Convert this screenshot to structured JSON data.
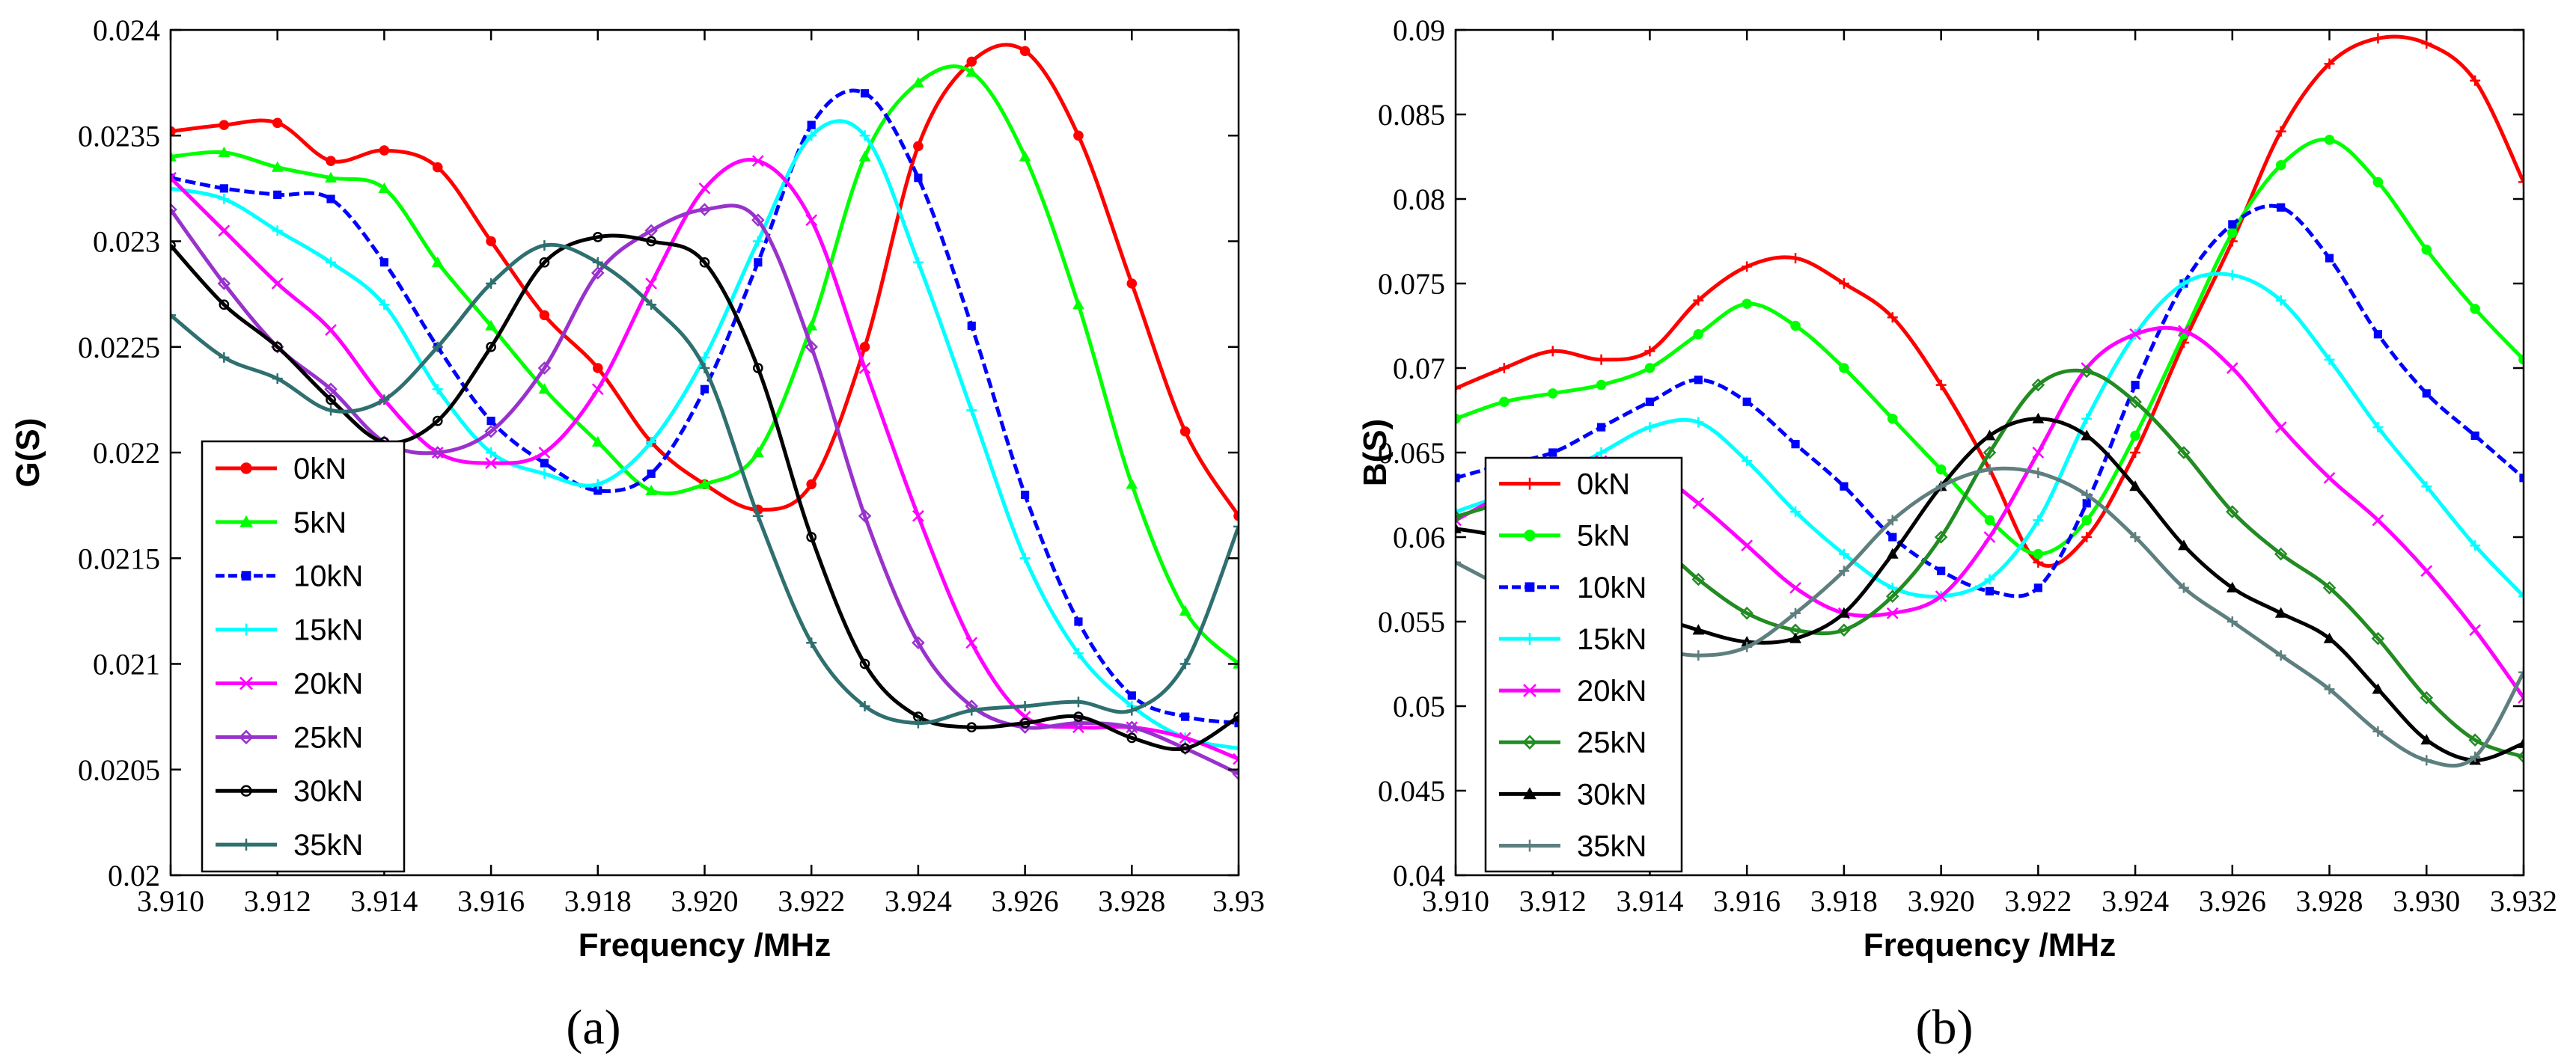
{
  "chart_data": [
    {
      "type": "line",
      "panel_label": "(a)",
      "ylabel": "G(S)",
      "xlabel": "Frequency /MHz",
      "xlim": [
        3.91,
        3.93
      ],
      "ylim": [
        0.02,
        0.024
      ],
      "xticks": [
        "3.910",
        "3.912",
        "3.914",
        "3.916",
        "3.918",
        "3.920",
        "3.922",
        "3.924",
        "3.926",
        "3.928",
        "3.93"
      ],
      "yticks": [
        "0.02",
        "0.0205",
        "0.021",
        "0.0215",
        "0.022",
        "0.0225",
        "0.023",
        "0.0235",
        "0.024"
      ],
      "legend_position": "bottom-left",
      "series": [
        {
          "name": "0kN",
          "color": "#ff0000",
          "marker": "dot",
          "x": [
            3.91,
            3.911,
            3.912,
            3.913,
            3.914,
            3.915,
            3.916,
            3.917,
            3.918,
            3.919,
            3.92,
            3.921,
            3.922,
            3.923,
            3.924,
            3.925,
            3.926,
            3.927,
            3.928,
            3.929,
            3.93
          ],
          "y": [
            0.02352,
            0.02355,
            0.02356,
            0.02338,
            0.02343,
            0.02335,
            0.023,
            0.02265,
            0.0224,
            0.02205,
            0.02185,
            0.02173,
            0.02185,
            0.0225,
            0.02345,
            0.02385,
            0.0239,
            0.0235,
            0.0228,
            0.0221,
            0.0217
          ]
        },
        {
          "name": "5kN",
          "color": "#00ff00",
          "marker": "triangle",
          "x": [
            3.91,
            3.911,
            3.912,
            3.913,
            3.914,
            3.915,
            3.916,
            3.917,
            3.918,
            3.919,
            3.92,
            3.921,
            3.922,
            3.923,
            3.924,
            3.925,
            3.926,
            3.927,
            3.928,
            3.929,
            3.93
          ],
          "y": [
            0.0234,
            0.02342,
            0.02335,
            0.0233,
            0.02325,
            0.0229,
            0.0226,
            0.0223,
            0.02205,
            0.02182,
            0.02185,
            0.022,
            0.0226,
            0.0234,
            0.02375,
            0.0238,
            0.0234,
            0.0227,
            0.02185,
            0.02125,
            0.021
          ]
        },
        {
          "name": "10kN",
          "color": "#0000ff",
          "marker": "square",
          "dashed": true,
          "x": [
            3.91,
            3.911,
            3.912,
            3.913,
            3.914,
            3.915,
            3.916,
            3.917,
            3.918,
            3.919,
            3.92,
            3.921,
            3.922,
            3.923,
            3.924,
            3.925,
            3.926,
            3.927,
            3.928,
            3.929,
            3.93
          ],
          "y": [
            0.0233,
            0.02325,
            0.02322,
            0.0232,
            0.0229,
            0.0225,
            0.02215,
            0.02195,
            0.02182,
            0.0219,
            0.0223,
            0.0229,
            0.02355,
            0.0237,
            0.0233,
            0.0226,
            0.0218,
            0.0212,
            0.02085,
            0.02075,
            0.02072
          ]
        },
        {
          "name": "15kN",
          "color": "#00ffff",
          "marker": "plus",
          "x": [
            3.91,
            3.911,
            3.912,
            3.913,
            3.914,
            3.915,
            3.916,
            3.917,
            3.918,
            3.919,
            3.92,
            3.921,
            3.922,
            3.923,
            3.924,
            3.925,
            3.926,
            3.927,
            3.928,
            3.929,
            3.93
          ],
          "y": [
            0.02325,
            0.0232,
            0.02305,
            0.0229,
            0.0227,
            0.0223,
            0.022,
            0.0219,
            0.02185,
            0.02205,
            0.02245,
            0.023,
            0.0235,
            0.0235,
            0.0229,
            0.0222,
            0.0215,
            0.02105,
            0.0208,
            0.02065,
            0.0206
          ]
        },
        {
          "name": "20kN",
          "color": "#ff00ff",
          "marker": "x",
          "x": [
            3.91,
            3.911,
            3.912,
            3.913,
            3.914,
            3.915,
            3.916,
            3.917,
            3.918,
            3.919,
            3.92,
            3.921,
            3.922,
            3.923,
            3.924,
            3.925,
            3.926,
            3.927,
            3.928,
            3.929,
            3.93
          ],
          "y": [
            0.0233,
            0.02305,
            0.0228,
            0.02258,
            0.02225,
            0.022,
            0.02195,
            0.022,
            0.0223,
            0.0228,
            0.02325,
            0.02338,
            0.0231,
            0.0224,
            0.0217,
            0.0211,
            0.02075,
            0.0207,
            0.0207,
            0.02065,
            0.02055
          ]
        },
        {
          "name": "25kN",
          "color": "#9932cc",
          "marker": "diamond",
          "x": [
            3.91,
            3.911,
            3.912,
            3.913,
            3.914,
            3.915,
            3.916,
            3.917,
            3.918,
            3.919,
            3.92,
            3.921,
            3.922,
            3.923,
            3.924,
            3.925,
            3.926,
            3.927,
            3.928,
            3.929,
            3.93
          ],
          "y": [
            0.02315,
            0.0228,
            0.0225,
            0.0223,
            0.02205,
            0.022,
            0.0221,
            0.0224,
            0.02285,
            0.02305,
            0.02315,
            0.0231,
            0.0225,
            0.0217,
            0.0211,
            0.0208,
            0.0207,
            0.02072,
            0.0207,
            0.0206,
            0.02048
          ]
        },
        {
          "name": "30kN",
          "color": "#000000",
          "marker": "circle",
          "x": [
            3.91,
            3.911,
            3.912,
            3.913,
            3.914,
            3.915,
            3.916,
            3.917,
            3.918,
            3.919,
            3.92,
            3.921,
            3.922,
            3.923,
            3.924,
            3.925,
            3.926,
            3.927,
            3.928,
            3.929,
            3.93
          ],
          "y": [
            0.02298,
            0.0227,
            0.0225,
            0.02225,
            0.02205,
            0.02215,
            0.0225,
            0.0229,
            0.02302,
            0.023,
            0.0229,
            0.0224,
            0.0216,
            0.021,
            0.02075,
            0.0207,
            0.02072,
            0.02075,
            0.02065,
            0.0206,
            0.02075
          ]
        },
        {
          "name": "35kN",
          "color": "#2f6f6f",
          "marker": "plus",
          "x": [
            3.91,
            3.911,
            3.912,
            3.913,
            3.914,
            3.915,
            3.916,
            3.917,
            3.918,
            3.919,
            3.92,
            3.921,
            3.922,
            3.923,
            3.924,
            3.925,
            3.926,
            3.927,
            3.928,
            3.929,
            3.93
          ],
          "y": [
            0.02265,
            0.02245,
            0.02235,
            0.0222,
            0.02225,
            0.0225,
            0.0228,
            0.02298,
            0.0229,
            0.0227,
            0.0224,
            0.0217,
            0.0211,
            0.0208,
            0.02072,
            0.02078,
            0.0208,
            0.02082,
            0.02078,
            0.021,
            0.02165
          ]
        }
      ]
    },
    {
      "type": "line",
      "panel_label": "(b)",
      "ylabel": "B(S)",
      "xlabel": "Frequency /MHz",
      "xlim": [
        3.91,
        3.932
      ],
      "ylim": [
        0.04,
        0.09
      ],
      "xticks": [
        "3.910",
        "3.912",
        "3.914",
        "3.916",
        "3.918",
        "3.920",
        "3.922",
        "3.924",
        "3.926",
        "3.928",
        "3.930",
        "3.932"
      ],
      "yticks": [
        "0.04",
        "0.045",
        "0.05",
        "0.055",
        "0.06",
        "0.065",
        "0.07",
        "0.075",
        "0.08",
        "0.085",
        "0.09"
      ],
      "legend_position": "bottom-left",
      "series": [
        {
          "name": "0kN",
          "color": "#ff0000",
          "marker": "plus",
          "x": [
            3.91,
            3.911,
            3.912,
            3.913,
            3.914,
            3.915,
            3.916,
            3.917,
            3.918,
            3.919,
            3.92,
            3.921,
            3.922,
            3.923,
            3.924,
            3.925,
            3.926,
            3.927,
            3.928,
            3.929,
            3.93,
            3.931,
            3.932
          ],
          "y": [
            0.0688,
            0.07,
            0.071,
            0.0705,
            0.071,
            0.074,
            0.076,
            0.0765,
            0.075,
            0.073,
            0.069,
            0.064,
            0.0585,
            0.06,
            0.065,
            0.0715,
            0.0775,
            0.084,
            0.088,
            0.0895,
            0.0892,
            0.087,
            0.081
          ]
        },
        {
          "name": "5kN",
          "color": "#00ff00",
          "marker": "dot",
          "x": [
            3.91,
            3.911,
            3.912,
            3.913,
            3.914,
            3.915,
            3.916,
            3.917,
            3.918,
            3.919,
            3.92,
            3.921,
            3.922,
            3.923,
            3.924,
            3.925,
            3.926,
            3.927,
            3.928,
            3.929,
            3.93,
            3.931,
            3.932
          ],
          "y": [
            0.067,
            0.068,
            0.0685,
            0.069,
            0.07,
            0.072,
            0.0738,
            0.0725,
            0.07,
            0.067,
            0.064,
            0.061,
            0.059,
            0.061,
            0.066,
            0.072,
            0.078,
            0.082,
            0.0835,
            0.081,
            0.077,
            0.0735,
            0.0705
          ]
        },
        {
          "name": "10kN",
          "color": "#0000ff",
          "marker": "square",
          "dashed": true,
          "x": [
            3.91,
            3.911,
            3.912,
            3.913,
            3.914,
            3.915,
            3.916,
            3.917,
            3.918,
            3.919,
            3.92,
            3.921,
            3.922,
            3.923,
            3.924,
            3.925,
            3.926,
            3.927,
            3.928,
            3.929,
            3.93,
            3.931,
            3.932
          ],
          "y": [
            0.0635,
            0.0643,
            0.065,
            0.0665,
            0.068,
            0.0693,
            0.068,
            0.0655,
            0.063,
            0.06,
            0.058,
            0.0568,
            0.057,
            0.062,
            0.069,
            0.075,
            0.0785,
            0.0795,
            0.0765,
            0.072,
            0.0685,
            0.066,
            0.0635
          ]
        },
        {
          "name": "15kN",
          "color": "#00ffff",
          "marker": "plus",
          "x": [
            3.91,
            3.911,
            3.912,
            3.913,
            3.914,
            3.915,
            3.916,
            3.917,
            3.918,
            3.919,
            3.92,
            3.921,
            3.922,
            3.923,
            3.924,
            3.925,
            3.926,
            3.927,
            3.928,
            3.929,
            3.93,
            3.931,
            3.932
          ],
          "y": [
            0.0615,
            0.0625,
            0.0635,
            0.065,
            0.0665,
            0.0668,
            0.0645,
            0.0615,
            0.059,
            0.057,
            0.0565,
            0.0575,
            0.061,
            0.067,
            0.072,
            0.075,
            0.0755,
            0.074,
            0.0705,
            0.0665,
            0.063,
            0.0595,
            0.0565
          ]
        },
        {
          "name": "20kN",
          "color": "#ff00ff",
          "marker": "x",
          "x": [
            3.91,
            3.911,
            3.912,
            3.913,
            3.914,
            3.915,
            3.916,
            3.917,
            3.918,
            3.919,
            3.92,
            3.921,
            3.922,
            3.923,
            3.924,
            3.925,
            3.926,
            3.927,
            3.928,
            3.929,
            3.93,
            3.931,
            3.932
          ],
          "y": [
            0.061,
            0.0625,
            0.0635,
            0.0645,
            0.064,
            0.062,
            0.0595,
            0.057,
            0.0555,
            0.0555,
            0.0565,
            0.06,
            0.065,
            0.07,
            0.072,
            0.0722,
            0.07,
            0.0665,
            0.0635,
            0.061,
            0.058,
            0.0545,
            0.0505
          ]
        },
        {
          "name": "25kN",
          "color": "#228b22",
          "marker": "diamond",
          "x": [
            3.91,
            3.911,
            3.912,
            3.913,
            3.914,
            3.915,
            3.916,
            3.917,
            3.918,
            3.919,
            3.92,
            3.921,
            3.922,
            3.923,
            3.924,
            3.925,
            3.926,
            3.927,
            3.928,
            3.929,
            3.93,
            3.931,
            3.932
          ],
          "y": [
            0.0612,
            0.062,
            0.0622,
            0.0615,
            0.06,
            0.0575,
            0.0555,
            0.0545,
            0.0545,
            0.0565,
            0.06,
            0.065,
            0.069,
            0.0698,
            0.068,
            0.065,
            0.0615,
            0.059,
            0.057,
            0.054,
            0.0505,
            0.048,
            0.047
          ]
        },
        {
          "name": "30kN",
          "color": "#000000",
          "marker": "triangle",
          "x": [
            3.91,
            3.911,
            3.912,
            3.913,
            3.914,
            3.915,
            3.916,
            3.917,
            3.918,
            3.919,
            3.92,
            3.921,
            3.922,
            3.923,
            3.924,
            3.925,
            3.926,
            3.927,
            3.928,
            3.929,
            3.93,
            3.931,
            3.932
          ],
          "y": [
            0.0605,
            0.06,
            0.059,
            0.057,
            0.0555,
            0.0545,
            0.0538,
            0.054,
            0.0555,
            0.059,
            0.063,
            0.066,
            0.067,
            0.066,
            0.063,
            0.0595,
            0.057,
            0.0555,
            0.054,
            0.051,
            0.048,
            0.0468,
            0.0478
          ]
        },
        {
          "name": "35kN",
          "color": "#5f7f7f",
          "marker": "plus",
          "x": [
            3.91,
            3.911,
            3.912,
            3.913,
            3.914,
            3.915,
            3.916,
            3.917,
            3.918,
            3.919,
            3.92,
            3.921,
            3.922,
            3.923,
            3.924,
            3.925,
            3.926,
            3.927,
            3.928,
            3.929,
            3.93,
            3.931,
            3.932
          ],
          "y": [
            0.0585,
            0.057,
            0.0555,
            0.0545,
            0.0535,
            0.053,
            0.0535,
            0.0555,
            0.058,
            0.061,
            0.063,
            0.064,
            0.0638,
            0.0625,
            0.06,
            0.057,
            0.055,
            0.053,
            0.051,
            0.0485,
            0.0468,
            0.047,
            0.052
          ]
        }
      ]
    }
  ]
}
